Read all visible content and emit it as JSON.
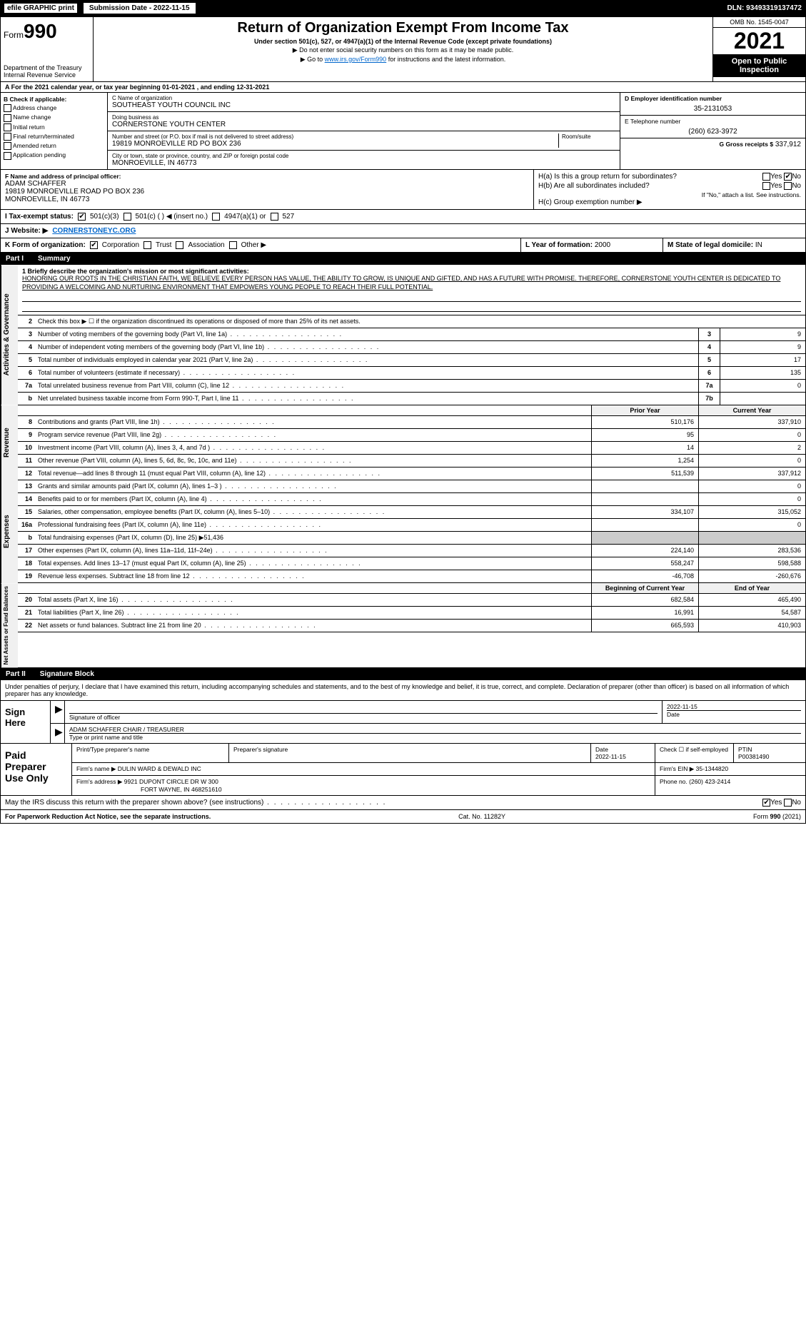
{
  "topbar": {
    "efile": "efile GRAPHIC print",
    "submission": "Submission Date - 2022-11-15",
    "dln": "DLN: 93493319137472"
  },
  "header": {
    "form_prefix": "Form",
    "form_num": "990",
    "dept": "Department of the Treasury",
    "irs": "Internal Revenue Service",
    "title": "Return of Organization Exempt From Income Tax",
    "sub1": "Under section 501(c), 527, or 4947(a)(1) of the Internal Revenue Code (except private foundations)",
    "sub2": "▶ Do not enter social security numbers on this form as it may be made public.",
    "sub3_pre": "▶ Go to ",
    "sub3_link": "www.irs.gov/Form990",
    "sub3_post": " for instructions and the latest information.",
    "omb": "OMB No. 1545-0047",
    "year": "2021",
    "open": "Open to Public Inspection"
  },
  "row_a": "A For the 2021 calendar year, or tax year beginning 01-01-2021    , and ending 12-31-2021",
  "col_b": {
    "hdr": "B Check if applicable:",
    "items": [
      "Address change",
      "Name change",
      "Initial return",
      "Final return/terminated",
      "Amended return",
      "Application pending"
    ]
  },
  "col_c": {
    "name_lbl": "C Name of organization",
    "name": "SOUTHEAST YOUTH COUNCIL INC",
    "dba_lbl": "Doing business as",
    "dba": "CORNERSTONE YOUTH CENTER",
    "addr_lbl": "Number and street (or P.O. box if mail is not delivered to street address)",
    "room_lbl": "Room/suite",
    "addr": "19819 MONROEVILLE RD PO BOX 236",
    "city_lbl": "City or town, state or province, country, and ZIP or foreign postal code",
    "city": "MONROEVILLE, IN  46773"
  },
  "col_d": {
    "lbl": "D Employer identification number",
    "val": "35-2131053"
  },
  "col_e": {
    "lbl": "E Telephone number",
    "val": "(260) 623-3972"
  },
  "col_g": {
    "lbl": "G Gross receipts $",
    "val": "337,912"
  },
  "col_f": {
    "lbl": "F  Name and address of principal officer:",
    "name": "ADAM SCHAFFER",
    "addr1": "19819 MONROEVILLE ROAD PO BOX 236",
    "addr2": "MONROEVILLE, IN  46773"
  },
  "col_h": {
    "a_lbl": "H(a)  Is this a group return for subordinates?",
    "a_yes": "Yes",
    "a_no": "No",
    "b_lbl": "H(b)  Are all subordinates included?",
    "b_yes": "Yes",
    "b_no": "No",
    "b_note": "If \"No,\" attach a list. See instructions.",
    "c_lbl": "H(c)  Group exemption number ▶"
  },
  "tax_row": {
    "i_lbl": "I  Tax-exempt status:",
    "opts": [
      "501(c)(3)",
      "501(c) (   ) ◀ (insert no.)",
      "4947(a)(1) or",
      "527"
    ]
  },
  "web_row": {
    "lbl": "J  Website: ▶",
    "val": "CORNERSTONEYC.ORG"
  },
  "k_row": {
    "lbl": "K Form of organization:",
    "opts": [
      "Corporation",
      "Trust",
      "Association",
      "Other ▶"
    ]
  },
  "lm": {
    "l_lbl": "L Year of formation:",
    "l_val": "2000",
    "m_lbl": "M State of legal domicile:",
    "m_val": "IN"
  },
  "part1": {
    "num": "Part I",
    "title": "Summary"
  },
  "mission": {
    "lbl": "1  Briefly describe the organization's mission or most significant activities:",
    "txt": "HONORING OUR ROOTS IN THE CHRISTIAN FAITH, WE BELIEVE EVERY PERSON HAS VALUE, THE ABILITY TO GROW, IS UNIQUE AND GIFTED, AND HAS A FUTURE WITH PROMISE. THEREFORE, CORNERSTONE YOUTH CENTER IS DEDICATED TO PROVIDING A WELCOMING AND NURTURING ENVIRONMENT THAT EMPOWERS YOUNG PEOPLE TO REACH THEIR FULL POTENTIAL."
  },
  "side_labels": {
    "gov": "Activities & Governance",
    "rev": "Revenue",
    "exp": "Expenses",
    "net": "Net Assets or Fund Balances"
  },
  "gov_rows": [
    {
      "n": "2",
      "d": "Check this box ▶ ☐  if the organization discontinued its operations or disposed of more than 25% of its net assets."
    },
    {
      "n": "3",
      "d": "Number of voting members of the governing body (Part VI, line 1a)",
      "b": "3",
      "v": "9"
    },
    {
      "n": "4",
      "d": "Number of independent voting members of the governing body (Part VI, line 1b)",
      "b": "4",
      "v": "9"
    },
    {
      "n": "5",
      "d": "Total number of individuals employed in calendar year 2021 (Part V, line 2a)",
      "b": "5",
      "v": "17"
    },
    {
      "n": "6",
      "d": "Total number of volunteers (estimate if necessary)",
      "b": "6",
      "v": "135"
    },
    {
      "n": "7a",
      "d": "Total unrelated business revenue from Part VIII, column (C), line 12",
      "b": "7a",
      "v": "0"
    },
    {
      "n": "b",
      "d": "Net unrelated business taxable income from Form 990-T, Part I, line 11",
      "b": "7b",
      "v": ""
    }
  ],
  "yr_hdr": {
    "prior": "Prior Year",
    "current": "Current Year"
  },
  "rev_rows": [
    {
      "n": "8",
      "d": "Contributions and grants (Part VIII, line 1h)",
      "p": "510,176",
      "c": "337,910"
    },
    {
      "n": "9",
      "d": "Program service revenue (Part VIII, line 2g)",
      "p": "95",
      "c": "0"
    },
    {
      "n": "10",
      "d": "Investment income (Part VIII, column (A), lines 3, 4, and 7d )",
      "p": "14",
      "c": "2"
    },
    {
      "n": "11",
      "d": "Other revenue (Part VIII, column (A), lines 5, 6d, 8c, 9c, 10c, and 11e)",
      "p": "1,254",
      "c": "0"
    },
    {
      "n": "12",
      "d": "Total revenue—add lines 8 through 11 (must equal Part VIII, column (A), line 12)",
      "p": "511,539",
      "c": "337,912"
    }
  ],
  "exp_rows": [
    {
      "n": "13",
      "d": "Grants and similar amounts paid (Part IX, column (A), lines 1–3 )",
      "p": "",
      "c": "0"
    },
    {
      "n": "14",
      "d": "Benefits paid to or for members (Part IX, column (A), line 4)",
      "p": "",
      "c": "0"
    },
    {
      "n": "15",
      "d": "Salaries, other compensation, employee benefits (Part IX, column (A), lines 5–10)",
      "p": "334,107",
      "c": "315,052"
    },
    {
      "n": "16a",
      "d": "Professional fundraising fees (Part IX, column (A), line 11e)",
      "p": "",
      "c": "0"
    },
    {
      "n": "b",
      "d": "Total fundraising expenses (Part IX, column (D), line 25) ▶51,436",
      "shade": true
    },
    {
      "n": "17",
      "d": "Other expenses (Part IX, column (A), lines 11a–11d, 11f–24e)",
      "p": "224,140",
      "c": "283,536"
    },
    {
      "n": "18",
      "d": "Total expenses. Add lines 13–17 (must equal Part IX, column (A), line 25)",
      "p": "558,247",
      "c": "598,588"
    },
    {
      "n": "19",
      "d": "Revenue less expenses. Subtract line 18 from line 12",
      "p": "-46,708",
      "c": "-260,676"
    }
  ],
  "net_hdr": {
    "beg": "Beginning of Current Year",
    "end": "End of Year"
  },
  "net_rows": [
    {
      "n": "20",
      "d": "Total assets (Part X, line 16)",
      "p": "682,584",
      "c": "465,490"
    },
    {
      "n": "21",
      "d": "Total liabilities (Part X, line 26)",
      "p": "16,991",
      "c": "54,587"
    },
    {
      "n": "22",
      "d": "Net assets or fund balances. Subtract line 21 from line 20",
      "p": "665,593",
      "c": "410,903"
    }
  ],
  "part2": {
    "num": "Part II",
    "title": "Signature Block"
  },
  "sig_intro": "Under penalties of perjury, I declare that I have examined this return, including accompanying schedules and statements, and to the best of my knowledge and belief, it is true, correct, and complete. Declaration of preparer (other than officer) is based on all information of which preparer has any knowledge.",
  "sign_here": "Sign Here",
  "sig": {
    "officer_lbl": "Signature of officer",
    "date_lbl": "Date",
    "date": "2022-11-15",
    "name": "ADAM SCHAFFER CHAIR / TREASURER",
    "name_lbl": "Type or print name and title"
  },
  "paid": {
    "title": "Paid Preparer Use Only",
    "h1": "Print/Type preparer's name",
    "h2": "Preparer's signature",
    "h3": "Date",
    "date": "2022-11-15",
    "h4": "Check ☐ if self-employed",
    "h5": "PTIN",
    "ptin": "P00381490",
    "firm_lbl": "Firm's name    ▶",
    "firm": "DULIN WARD & DEWALD INC",
    "ein_lbl": "Firm's EIN ▶",
    "ein": "35-1344820",
    "addr_lbl": "Firm's address ▶",
    "addr1": "9921 DUPONT CIRCLE DR W 300",
    "addr2": "FORT WAYNE, IN  468251610",
    "phone_lbl": "Phone no.",
    "phone": "(260) 423-2414"
  },
  "may_discuss": "May the IRS discuss this return with the preparer shown above? (see instructions)",
  "footer": {
    "left": "For Paperwork Reduction Act Notice, see the separate instructions.",
    "mid": "Cat. No. 11282Y",
    "right": "Form 990 (2021)"
  }
}
